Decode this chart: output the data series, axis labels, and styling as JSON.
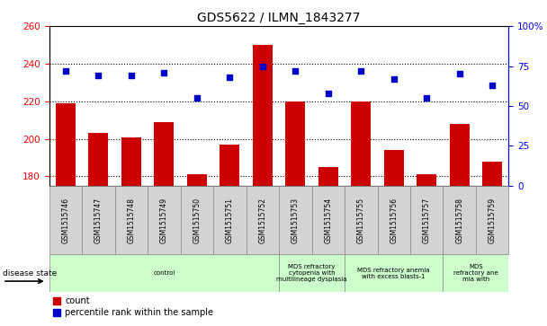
{
  "title": "GDS5622 / ILMN_1843277",
  "samples": [
    "GSM1515746",
    "GSM1515747",
    "GSM1515748",
    "GSM1515749",
    "GSM1515750",
    "GSM1515751",
    "GSM1515752",
    "GSM1515753",
    "GSM1515754",
    "GSM1515755",
    "GSM1515756",
    "GSM1515757",
    "GSM1515758",
    "GSM1515759"
  ],
  "counts": [
    219,
    203,
    201,
    209,
    181,
    197,
    250,
    220,
    185,
    220,
    194,
    181,
    208,
    188
  ],
  "percentiles": [
    72,
    69,
    69,
    71,
    55,
    68,
    75,
    72,
    58,
    72,
    67,
    55,
    70,
    63
  ],
  "ylim_left": [
    175,
    260
  ],
  "ylim_right": [
    0,
    100
  ],
  "yticks_left": [
    180,
    200,
    220,
    240,
    260
  ],
  "yticks_right": [
    0,
    25,
    50,
    75,
    100
  ],
  "bar_color": "#cc0000",
  "scatter_color": "#0000cc",
  "group_bounds": [
    [
      0,
      7,
      "control"
    ],
    [
      7,
      9,
      "MDS refractory\ncytopenia with\nmultilineage dysplasia"
    ],
    [
      9,
      12,
      "MDS refractory anemia\nwith excess blasts-1"
    ],
    [
      12,
      14,
      "MDS\nrefractory ane\nmia with"
    ]
  ],
  "disease_state_label": "disease state",
  "legend_count_label": "count",
  "legend_pct_label": "percentile rank within the sample",
  "background_color": "#ffffff",
  "xlabel_bg": "#d3d3d3",
  "disease_bg": "#ccffcc"
}
